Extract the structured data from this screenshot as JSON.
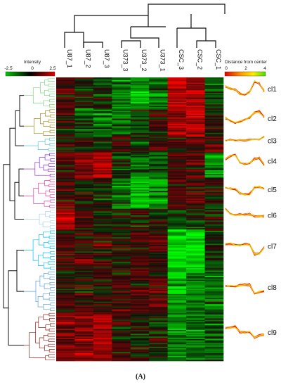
{
  "samples": [
    "U87_1",
    "U87_2",
    "U87_3",
    "U373_3",
    "U373_2",
    "U373_1",
    "CSC_3",
    "CSC_2",
    "CSC_1"
  ],
  "intensity_legend": {
    "title": "Intensity",
    "ticks": [
      "-2.5",
      "0",
      "2.5"
    ],
    "colors": [
      "#00c800",
      "#000000",
      "#e00000"
    ]
  },
  "distance_legend": {
    "title": "Distance from center",
    "ticks": [
      "0",
      "2",
      "4"
    ],
    "colors": [
      "#e00000",
      "#ff9900",
      "#ffee00",
      "#44dd00"
    ]
  },
  "clusters": [
    {
      "label": "cl1",
      "color": "#7ddc7d",
      "pattern": [
        0.5,
        0.0,
        -0.3,
        -1.2,
        -1.4,
        -0.8,
        1.8,
        1.2,
        -0.6
      ]
    },
    {
      "label": "cl2",
      "color": "#a08a20",
      "pattern": [
        0.1,
        -0.6,
        -1.0,
        -0.8,
        -0.4,
        0.3,
        1.4,
        1.6,
        0.4
      ]
    },
    {
      "label": "cl3",
      "color": "#5ac8c8",
      "pattern": [
        -0.2,
        0.2,
        -0.1,
        0.1,
        -0.2,
        0.2,
        0.3,
        0.2,
        1.2
      ]
    },
    {
      "label": "cl4",
      "color": "#8a2be2",
      "pattern": [
        0.3,
        1.2,
        1.5,
        -0.3,
        -0.8,
        -0.6,
        0.4,
        0.6,
        -1.0
      ]
    },
    {
      "label": "cl5",
      "color": "#e040a0",
      "pattern": [
        0.3,
        0.2,
        0.0,
        -1.0,
        -1.4,
        -1.2,
        0.4,
        0.6,
        0.1
      ]
    },
    {
      "label": "cl6",
      "color": "#aaccee",
      "pattern": [
        1.6,
        0.3,
        0.0,
        0.1,
        0.0,
        0.2,
        -0.3,
        -0.4,
        -0.2
      ]
    },
    {
      "label": "cl7",
      "color": "#00bfff",
      "pattern": [
        0.4,
        0.5,
        0.3,
        0.2,
        0.3,
        0.4,
        -2.0,
        -1.8,
        -0.4
      ]
    },
    {
      "label": "cl8",
      "color": "#5aa0d8",
      "pattern": [
        0.2,
        0.3,
        0.2,
        0.4,
        0.5,
        0.6,
        -1.6,
        -1.2,
        -0.9
      ]
    },
    {
      "label": "cl9",
      "color": "#8b2318",
      "pattern": [
        1.0,
        1.2,
        1.4,
        0.1,
        -0.1,
        0.1,
        -1.2,
        -0.8,
        -0.6
      ]
    }
  ],
  "panel_label": "(A)"
}
